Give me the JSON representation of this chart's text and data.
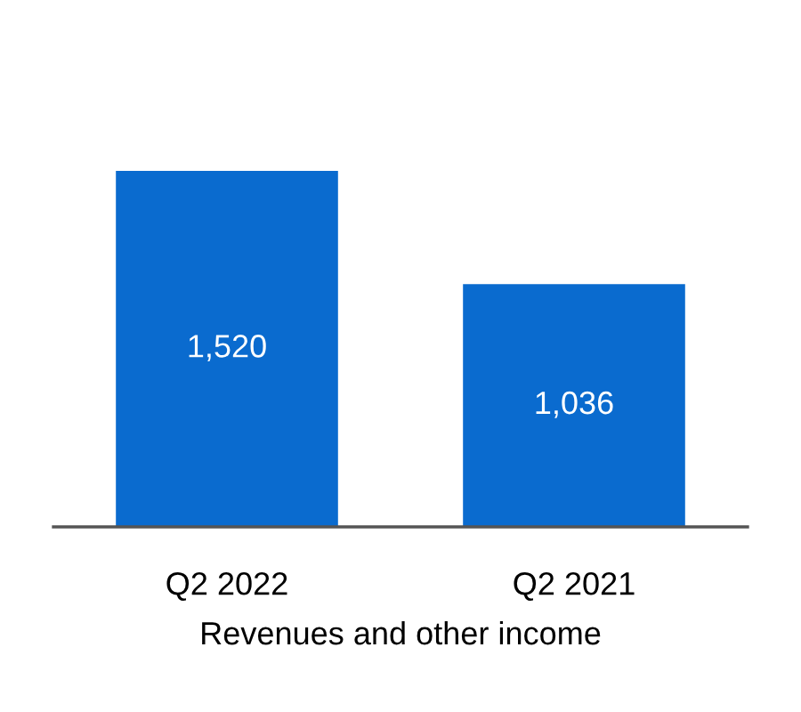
{
  "chart_data": {
    "type": "bar",
    "xlabel": "Revenues and other income",
    "categories": [
      "Q2 2022",
      "Q2 2021"
    ],
    "values": [
      1520,
      1036
    ],
    "value_labels": [
      "1,520",
      "1,036"
    ],
    "color": "#0a6bcf",
    "grid": false,
    "legend": false
  }
}
